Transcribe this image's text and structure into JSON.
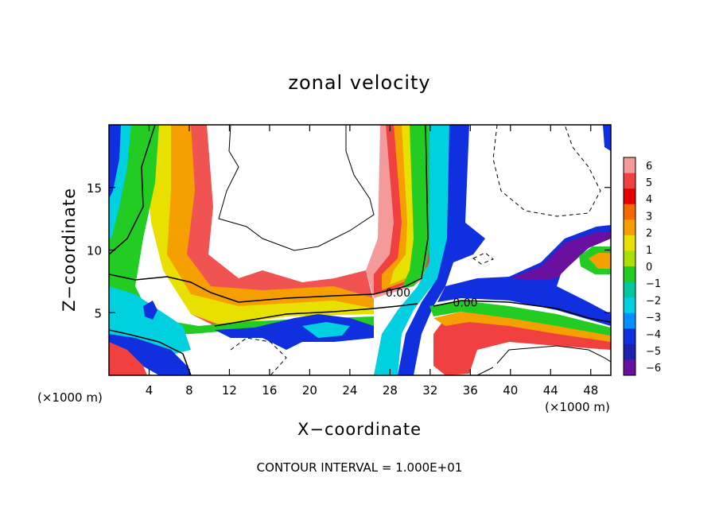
{
  "chart_data": {
    "type": "heatmap",
    "title": "zonal velocity",
    "xlabel": "X−coordinate",
    "ylabel": "Z−coordinate",
    "x_unit_left": "(×1000 m)",
    "x_unit_right": "(×1000 m)",
    "xlim": [
      0,
      50
    ],
    "ylim": [
      0,
      20
    ],
    "x_ticks": [
      4,
      8,
      12,
      16,
      20,
      24,
      28,
      32,
      36,
      40,
      44,
      48
    ],
    "y_ticks": [
      5,
      10,
      15
    ],
    "colorbar": {
      "levels": [
        6,
        5,
        4,
        3,
        2,
        1,
        0,
        -1,
        -2,
        -3,
        -4,
        -5,
        -6
      ],
      "level_labels": [
        "6",
        "5",
        "4",
        "3",
        "2",
        "1",
        "0",
        "−1",
        "−2",
        "−3",
        "−4",
        "−5",
        "−6"
      ],
      "colors": [
        "#f59a9a",
        "#f04040",
        "#e60000",
        "#f56a00",
        "#f5a000",
        "#e8e000",
        "#a8e000",
        "#22cc22",
        "#00c8a0",
        "#00d0e0",
        "#0090ff",
        "#1030e0",
        "#2020b0",
        "#6a10a0"
      ]
    },
    "contour_labels": [
      {
        "text": "0.00",
        "x": 28.8,
        "z": 6.3
      },
      {
        "text": "0.00",
        "x": 35.5,
        "z": 5.5
      }
    ],
    "footnote": "CONTOUR INTERVAL = 1.000E+01"
  }
}
